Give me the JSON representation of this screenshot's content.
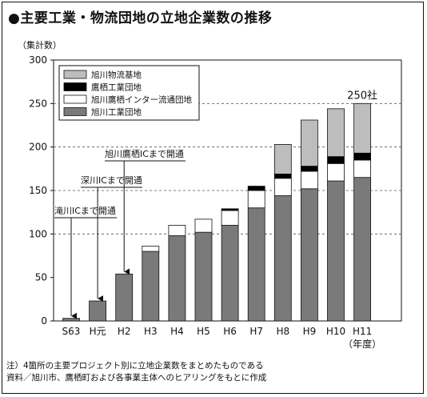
{
  "title": "●主要工業・物流団地の立地企業数の推移",
  "unit_label": "（集計数）",
  "notes": [
    "注）4箇所の主要プロジェクト別に立地企業数をまとめたものである",
    "資料／旭川市、鷹栖町および各事業主体へのヒアリングをもとに作成"
  ],
  "chart_data": {
    "type": "bar",
    "stacked": true,
    "categories": [
      "S63",
      "H元",
      "H2",
      "H3",
      "H4",
      "H5",
      "H6",
      "H7",
      "H8",
      "H9",
      "H10",
      "H11"
    ],
    "x_unit_label": "（年度）",
    "ylim": [
      0,
      300
    ],
    "yticks": [
      0,
      50,
      100,
      150,
      200,
      250,
      300
    ],
    "grid": "dashed horizontal at 100, 150, 200, 250",
    "legend_position": "top-left",
    "series": [
      {
        "name": "旭川工業団地",
        "color": "#7a7a7a",
        "values": [
          3,
          23,
          54,
          80,
          98,
          102,
          110,
          130,
          144,
          152,
          161,
          165
        ]
      },
      {
        "name": "旭川鷹栖インター流通団地",
        "color": "#ffffff",
        "values": [
          0,
          0,
          0,
          6,
          12,
          15,
          17,
          20,
          20,
          20,
          20,
          20
        ]
      },
      {
        "name": "鷹栖工業団地",
        "color": "#000000",
        "values": [
          0,
          0,
          0,
          0,
          0,
          0,
          2,
          5,
          5,
          6,
          8,
          8
        ]
      },
      {
        "name": "旭川物流基地",
        "color": "#bdbdbd",
        "values": [
          0,
          0,
          0,
          0,
          0,
          0,
          0,
          0,
          34,
          53,
          55,
          57
        ]
      }
    ],
    "annotations": [
      {
        "text": "滝川ICまで開通",
        "category": "S63"
      },
      {
        "text": "深川ICまで開通",
        "category": "H元"
      },
      {
        "text": "旭川鷹栖ICまで開通",
        "category": "H2"
      }
    ],
    "total_label": {
      "text": "250社",
      "category": "H11"
    }
  }
}
